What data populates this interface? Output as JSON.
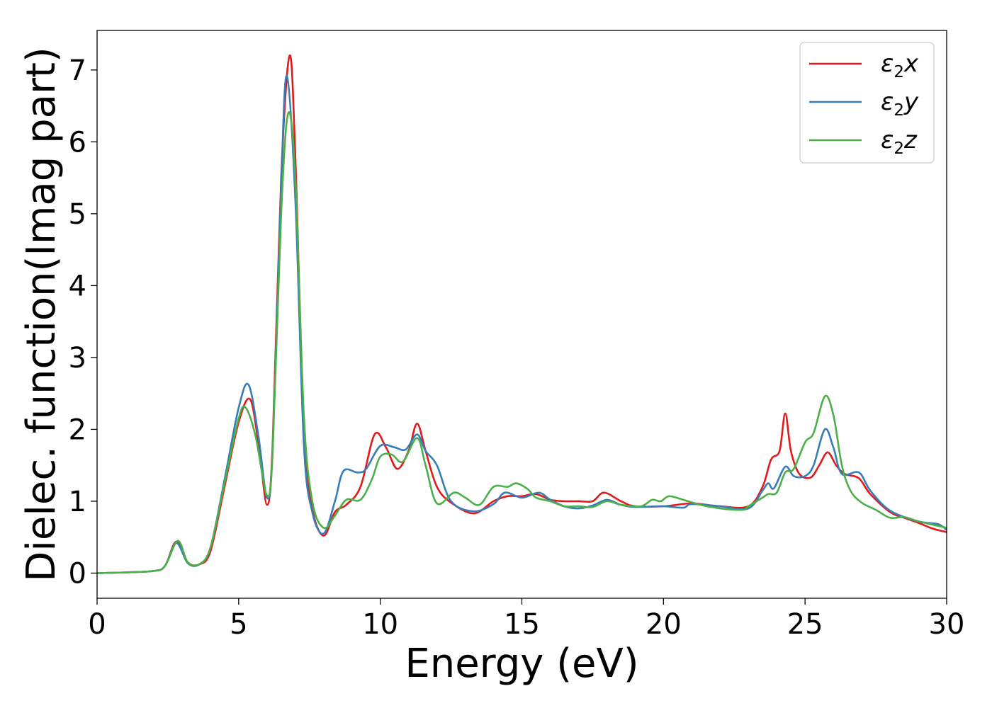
{
  "chart_data": {
    "type": "line",
    "title": "",
    "xlabel": "Energy (eV)",
    "ylabel": "Dielec. function(Imag part)",
    "xlim": [
      0,
      30
    ],
    "ylim": [
      -0.35,
      7.55
    ],
    "xticks": [
      0,
      5,
      10,
      15,
      20,
      25,
      30
    ],
    "yticks": [
      0,
      1,
      2,
      3,
      4,
      5,
      6,
      7
    ],
    "grid": false,
    "legend_position": "top-right",
    "series": [
      {
        "name": "ε2x",
        "legend_base": "ε",
        "legend_sub": "2",
        "legend_suffix": "x",
        "color": "#e31a1c",
        "points": [
          [
            0,
            0
          ],
          [
            1,
            0.01
          ],
          [
            2,
            0.03
          ],
          [
            2.4,
            0.1
          ],
          [
            2.8,
            0.44
          ],
          [
            3.2,
            0.15
          ],
          [
            3.6,
            0.12
          ],
          [
            4,
            0.3
          ],
          [
            4.5,
            1.2
          ],
          [
            5,
            2.1
          ],
          [
            5.4,
            2.42
          ],
          [
            5.7,
            1.8
          ],
          [
            6,
            0.95
          ],
          [
            6.2,
            1.8
          ],
          [
            6.5,
            5.5
          ],
          [
            6.8,
            7.2
          ],
          [
            7,
            5.8
          ],
          [
            7.3,
            2
          ],
          [
            7.6,
            0.9
          ],
          [
            8,
            0.52
          ],
          [
            8.4,
            0.85
          ],
          [
            8.8,
            0.95
          ],
          [
            9.3,
            1.2
          ],
          [
            9.8,
            1.93
          ],
          [
            10.2,
            1.75
          ],
          [
            10.6,
            1.45
          ],
          [
            11,
            1.7
          ],
          [
            11.3,
            2.08
          ],
          [
            11.6,
            1.7
          ],
          [
            12,
            1.2
          ],
          [
            12.5,
            0.98
          ],
          [
            13.3,
            0.83
          ],
          [
            14,
            1
          ],
          [
            14.5,
            1.07
          ],
          [
            15,
            1.07
          ],
          [
            15.5,
            1.1
          ],
          [
            16,
            1.02
          ],
          [
            16.5,
            1
          ],
          [
            17,
            1
          ],
          [
            17.5,
            1
          ],
          [
            17.9,
            1.12
          ],
          [
            18.5,
            1
          ],
          [
            19,
            0.93
          ],
          [
            20,
            0.93
          ],
          [
            21,
            0.97
          ],
          [
            22,
            0.93
          ],
          [
            23,
            0.93
          ],
          [
            23.5,
            1.2
          ],
          [
            23.8,
            1.58
          ],
          [
            24.1,
            1.7
          ],
          [
            24.3,
            2.22
          ],
          [
            24.5,
            1.7
          ],
          [
            24.8,
            1.38
          ],
          [
            25.2,
            1.33
          ],
          [
            25.5,
            1.5
          ],
          [
            25.8,
            1.68
          ],
          [
            26.1,
            1.5
          ],
          [
            26.4,
            1.38
          ],
          [
            26.9,
            1.32
          ],
          [
            27.3,
            1.1
          ],
          [
            28,
            0.85
          ],
          [
            28.5,
            0.77
          ],
          [
            29,
            0.7
          ],
          [
            29.5,
            0.62
          ],
          [
            30,
            0.57
          ]
        ]
      },
      {
        "name": "ε2y",
        "legend_base": "ε",
        "legend_sub": "2",
        "legend_suffix": "y",
        "color": "#377eb8",
        "points": [
          [
            0,
            0
          ],
          [
            1,
            0.01
          ],
          [
            2,
            0.03
          ],
          [
            2.4,
            0.1
          ],
          [
            2.8,
            0.42
          ],
          [
            3.2,
            0.14
          ],
          [
            3.6,
            0.12
          ],
          [
            4,
            0.35
          ],
          [
            4.5,
            1.3
          ],
          [
            5,
            2.3
          ],
          [
            5.35,
            2.62
          ],
          [
            5.7,
            1.9
          ],
          [
            6,
            1.05
          ],
          [
            6.2,
            1.7
          ],
          [
            6.5,
            5.4
          ],
          [
            6.7,
            6.92
          ],
          [
            7,
            5.2
          ],
          [
            7.3,
            1.8
          ],
          [
            7.6,
            0.85
          ],
          [
            8,
            0.55
          ],
          [
            8.4,
            1
          ],
          [
            8.7,
            1.42
          ],
          [
            9.2,
            1.4
          ],
          [
            9.5,
            1.45
          ],
          [
            10,
            1.77
          ],
          [
            10.5,
            1.75
          ],
          [
            10.9,
            1.72
          ],
          [
            11.3,
            1.93
          ],
          [
            11.6,
            1.7
          ],
          [
            12,
            1.5
          ],
          [
            12.5,
            1
          ],
          [
            13.3,
            0.86
          ],
          [
            14,
            0.96
          ],
          [
            14.4,
            1.12
          ],
          [
            15,
            1.05
          ],
          [
            15.6,
            1.12
          ],
          [
            16,
            1.02
          ],
          [
            16.5,
            0.93
          ],
          [
            17,
            0.9
          ],
          [
            17.5,
            0.94
          ],
          [
            18,
            1.02
          ],
          [
            18.5,
            0.95
          ],
          [
            19,
            0.92
          ],
          [
            20,
            0.93
          ],
          [
            20.7,
            0.91
          ],
          [
            21,
            0.96
          ],
          [
            22,
            0.93
          ],
          [
            23,
            0.9
          ],
          [
            23.5,
            1.15
          ],
          [
            23.7,
            1.25
          ],
          [
            23.9,
            1.18
          ],
          [
            24.3,
            1.48
          ],
          [
            24.6,
            1.35
          ],
          [
            25,
            1.35
          ],
          [
            25.3,
            1.5
          ],
          [
            25.7,
            2
          ],
          [
            26,
            1.75
          ],
          [
            26.3,
            1.38
          ],
          [
            26.9,
            1.4
          ],
          [
            27.3,
            1.15
          ],
          [
            28,
            0.87
          ],
          [
            29,
            0.72
          ],
          [
            29.7,
            0.68
          ],
          [
            30,
            0.6
          ]
        ]
      },
      {
        "name": "ε2z",
        "legend_base": "ε",
        "legend_sub": "2",
        "legend_suffix": "z",
        "color": "#4daf4a",
        "points": [
          [
            0,
            0
          ],
          [
            1,
            0.01
          ],
          [
            2,
            0.03
          ],
          [
            2.4,
            0.1
          ],
          [
            2.85,
            0.45
          ],
          [
            3.2,
            0.15
          ],
          [
            3.6,
            0.12
          ],
          [
            4,
            0.35
          ],
          [
            4.5,
            1.25
          ],
          [
            5,
            2.15
          ],
          [
            5.25,
            2.3
          ],
          [
            5.6,
            1.9
          ],
          [
            6,
            1.08
          ],
          [
            6.2,
            1.7
          ],
          [
            6.5,
            5
          ],
          [
            6.75,
            6.4
          ],
          [
            7,
            5.5
          ],
          [
            7.3,
            2.2
          ],
          [
            7.6,
            1
          ],
          [
            8,
            0.63
          ],
          [
            8.4,
            0.8
          ],
          [
            8.8,
            1.02
          ],
          [
            9.3,
            1.02
          ],
          [
            9.7,
            1.3
          ],
          [
            10,
            1.62
          ],
          [
            10.4,
            1.65
          ],
          [
            10.8,
            1.55
          ],
          [
            11.3,
            1.88
          ],
          [
            11.6,
            1.5
          ],
          [
            12,
            0.97
          ],
          [
            12.6,
            1.12
          ],
          [
            13,
            1.05
          ],
          [
            13.5,
            0.95
          ],
          [
            14,
            1.2
          ],
          [
            14.5,
            1.2
          ],
          [
            14.8,
            1.25
          ],
          [
            15.2,
            1.17
          ],
          [
            15.5,
            1.05
          ],
          [
            16,
            1
          ],
          [
            16.5,
            0.93
          ],
          [
            17,
            0.93
          ],
          [
            17.5,
            0.92
          ],
          [
            18,
            1
          ],
          [
            18.5,
            0.95
          ],
          [
            19.2,
            0.93
          ],
          [
            19.6,
            1.02
          ],
          [
            19.9,
            1
          ],
          [
            20.2,
            1.07
          ],
          [
            20.7,
            1.02
          ],
          [
            21.3,
            0.95
          ],
          [
            22,
            0.9
          ],
          [
            22.8,
            0.88
          ],
          [
            23,
            0.93
          ],
          [
            23.5,
            1.05
          ],
          [
            23.7,
            1.1
          ],
          [
            24,
            1.12
          ],
          [
            24.3,
            1.4
          ],
          [
            24.6,
            1.45
          ],
          [
            25,
            1.82
          ],
          [
            25.3,
            1.95
          ],
          [
            25.7,
            2.46
          ],
          [
            26,
            2.2
          ],
          [
            26.3,
            1.5
          ],
          [
            26.6,
            1.15
          ],
          [
            27,
            0.98
          ],
          [
            27.5,
            0.88
          ],
          [
            28,
            0.77
          ],
          [
            28.5,
            0.78
          ],
          [
            29,
            0.72
          ],
          [
            30,
            0.63
          ]
        ]
      }
    ]
  }
}
